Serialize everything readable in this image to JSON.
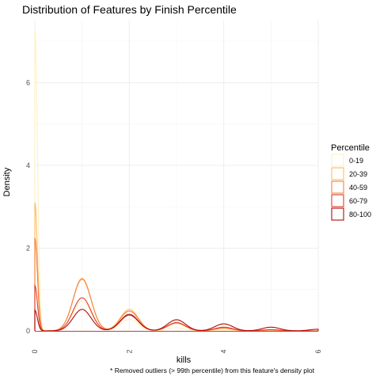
{
  "chart_data": {
    "type": "area",
    "title": "Distribution of Features by Finish Percentile",
    "xlabel": "kills",
    "ylabel": "Density",
    "caption": "* Removed outliers (> 99th percentile) from this feature's density plot",
    "xlim": [
      0,
      6
    ],
    "ylim": [
      0,
      7.5
    ],
    "x_ticks": [
      "0",
      "2",
      "4",
      "6"
    ],
    "y_ticks": [
      "0",
      "2",
      "4",
      "6"
    ],
    "grid": true,
    "legend": {
      "title": "Percentile",
      "position": "right"
    },
    "series": [
      {
        "name": "0-19",
        "color": "#fff0c0",
        "peaks": [
          [
            0,
            7.3
          ],
          [
            1,
            0.72
          ],
          [
            2,
            0.28
          ],
          [
            3,
            0.08
          ],
          [
            4,
            0.02
          ]
        ]
      },
      {
        "name": "20-39",
        "color": "#fdbb63",
        "peaks": [
          [
            0,
            3.1
          ],
          [
            1,
            1.27
          ],
          [
            2,
            0.52
          ],
          [
            3,
            0.18
          ],
          [
            4,
            0.06
          ],
          [
            5,
            0.02
          ]
        ]
      },
      {
        "name": "40-59",
        "color": "#f5803a",
        "peaks": [
          [
            0,
            2.25
          ],
          [
            1,
            1.25
          ],
          [
            2,
            0.48
          ],
          [
            3,
            0.2
          ],
          [
            4,
            0.07
          ],
          [
            5,
            0.02
          ]
        ]
      },
      {
        "name": "60-79",
        "color": "#e03c2b",
        "peaks": [
          [
            0,
            1.1
          ],
          [
            1,
            0.8
          ],
          [
            2,
            0.38
          ],
          [
            3,
            0.2
          ],
          [
            4,
            0.09
          ],
          [
            5,
            0.03
          ]
        ]
      },
      {
        "name": "80-100",
        "color": "#b00b0b",
        "peaks": [
          [
            0,
            0.5
          ],
          [
            1,
            0.52
          ],
          [
            2,
            0.4
          ],
          [
            3,
            0.27
          ],
          [
            4,
            0.17
          ],
          [
            5,
            0.09
          ],
          [
            6,
            0.04
          ]
        ]
      }
    ]
  }
}
